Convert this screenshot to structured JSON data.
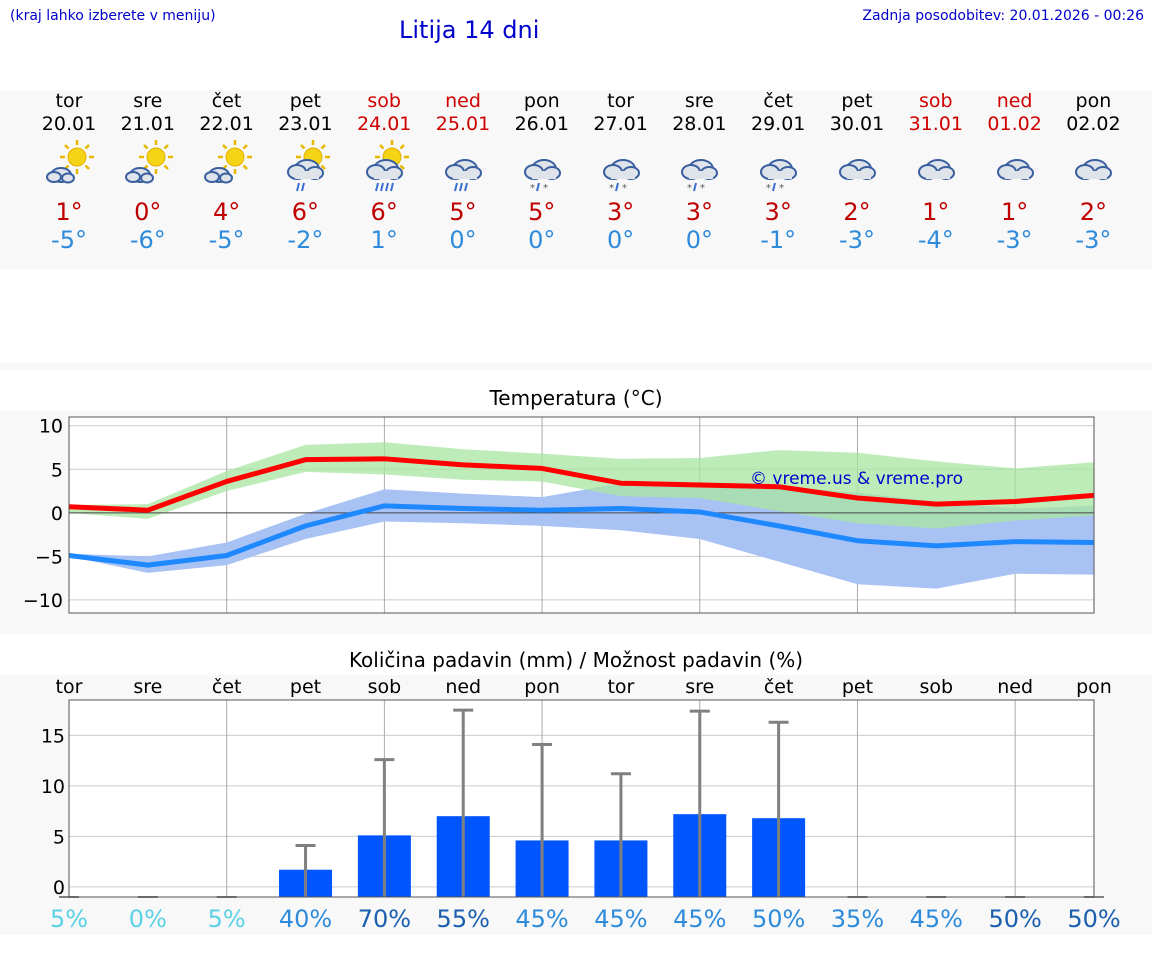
{
  "header": {
    "note": "(kraj lahko izberete v meniju)",
    "title": "Litija 14 dni",
    "updated": "Zadnja posodobitev: 20.01.2026 - 00:26"
  },
  "days": [
    {
      "name": "tor",
      "date": "20.01",
      "weekend": false,
      "icon": "sun-cloud-icon",
      "tmax": "1°",
      "tmin": "-5°"
    },
    {
      "name": "sre",
      "date": "21.01",
      "weekend": false,
      "icon": "sun-cloud-icon",
      "tmax": "0°",
      "tmin": "-6°"
    },
    {
      "name": "čet",
      "date": "22.01",
      "weekend": false,
      "icon": "sun-cloud-icon",
      "tmax": "4°",
      "tmin": "-5°"
    },
    {
      "name": "pet",
      "date": "23.01",
      "weekend": false,
      "icon": "sun-cloud-rain-icon",
      "tmax": "6°",
      "tmin": "-2°"
    },
    {
      "name": "sob",
      "date": "24.01",
      "weekend": true,
      "icon": "sun-cloud-heavy-rain-icon",
      "tmax": "6°",
      "tmin": "1°"
    },
    {
      "name": "ned",
      "date": "25.01",
      "weekend": true,
      "icon": "cloud-rain-icon",
      "tmax": "5°",
      "tmin": "0°"
    },
    {
      "name": "pon",
      "date": "26.01",
      "weekend": false,
      "icon": "cloud-sleet-icon",
      "tmax": "5°",
      "tmin": "0°"
    },
    {
      "name": "tor",
      "date": "27.01",
      "weekend": false,
      "icon": "cloud-sleet-icon",
      "tmax": "3°",
      "tmin": "0°"
    },
    {
      "name": "sre",
      "date": "28.01",
      "weekend": false,
      "icon": "cloud-sleet-icon",
      "tmax": "3°",
      "tmin": "0°"
    },
    {
      "name": "čet",
      "date": "29.01",
      "weekend": false,
      "icon": "cloud-sleet-icon",
      "tmax": "3°",
      "tmin": "-1°"
    },
    {
      "name": "pet",
      "date": "30.01",
      "weekend": false,
      "icon": "cloud-icon",
      "tmax": "2°",
      "tmin": "-3°"
    },
    {
      "name": "sob",
      "date": "31.01",
      "weekend": true,
      "icon": "cloud-icon",
      "tmax": "1°",
      "tmin": "-4°"
    },
    {
      "name": "ned",
      "date": "01.02",
      "weekend": true,
      "icon": "cloud-icon",
      "tmax": "1°",
      "tmin": "-3°"
    },
    {
      "name": "pon",
      "date": "02.02",
      "weekend": false,
      "icon": "cloud-icon",
      "tmax": "2°",
      "tmin": "-3°"
    }
  ],
  "colors": {
    "max_line": "#ff0000",
    "min_line": "#1e88ff",
    "max_band": "#a8e6a0",
    "min_band": "#a9c2f4",
    "overlap_band": "#7fbfa0",
    "bar": "#0055ff",
    "error": "#808080",
    "weekend": "#d00000",
    "tmin_text": "#2e8bdc"
  },
  "chart_data": [
    {
      "type": "line",
      "title": "Temperatura (°C)",
      "watermark": "© vreme.us & vreme.pro",
      "ylim": [
        -11.5,
        11
      ],
      "yticks": [
        10,
        5,
        0,
        -5,
        -10
      ],
      "ytick_labels": [
        "10",
        "5",
        "0",
        "−5",
        "−10"
      ],
      "x": [
        0,
        1,
        2,
        3,
        4,
        5,
        6,
        7,
        8,
        9,
        10,
        11,
        12,
        13
      ],
      "series": [
        {
          "name": "max",
          "values": [
            0.7,
            0.3,
            3.6,
            6.1,
            6.2,
            5.5,
            5.1,
            3.4,
            3.2,
            3.0,
            1.7,
            1.0,
            1.3,
            2.0
          ],
          "band_low": [
            0.0,
            -0.7,
            2.5,
            4.7,
            4.4,
            3.8,
            3.6,
            1.9,
            1.7,
            0.2,
            -1.2,
            -1.8,
            -0.9,
            -0.3
          ],
          "band_high": [
            0.9,
            1.0,
            4.8,
            7.8,
            8.1,
            7.3,
            6.8,
            6.2,
            6.3,
            7.2,
            6.9,
            5.9,
            5.1,
            5.8
          ]
        },
        {
          "name": "min",
          "values": [
            -4.9,
            -6.0,
            -4.9,
            -1.5,
            0.8,
            0.5,
            0.3,
            0.5,
            0.1,
            -1.5,
            -3.2,
            -3.8,
            -3.3,
            -3.4
          ],
          "band_low": [
            -5.0,
            -6.9,
            -6.0,
            -3.0,
            -1.0,
            -1.2,
            -1.5,
            -2.0,
            -3.0,
            -5.6,
            -8.2,
            -8.7,
            -7.0,
            -7.1
          ],
          "band_high": [
            -4.7,
            -5.0,
            -3.4,
            -0.1,
            2.7,
            2.2,
            1.8,
            3.4,
            3.4,
            3.0,
            2.3,
            1.3,
            0.5,
            0.8
          ]
        }
      ]
    },
    {
      "type": "bar",
      "title": "Količina padavin (mm) / Možnost padavin (%)",
      "categories": [
        "tor",
        "sre",
        "čet",
        "pet",
        "sob",
        "ned",
        "pon",
        "tor",
        "sre",
        "čet",
        "pet",
        "sob",
        "ned",
        "pon"
      ],
      "ylim": [
        -1,
        18.5
      ],
      "yticks": [
        15,
        10,
        5,
        0
      ],
      "ytick_labels": [
        "15",
        "10",
        "5",
        "0"
      ],
      "values": [
        0,
        0,
        0,
        1.7,
        5.1,
        7.0,
        4.6,
        4.6,
        7.2,
        6.8,
        0,
        0,
        0,
        0
      ],
      "error_high": [
        0,
        0,
        0,
        4.1,
        12.6,
        17.5,
        14.1,
        11.2,
        17.4,
        16.3,
        0,
        0,
        0,
        0
      ],
      "probability": [
        "5%",
        "0%",
        "5%",
        "40%",
        "70%",
        "55%",
        "45%",
        "45%",
        "45%",
        "50%",
        "35%",
        "45%",
        "50%",
        "50%"
      ],
      "probability_colors": [
        "#5bd1e6",
        "#5bd1e6",
        "#5bd1e6",
        "#2e8bdc",
        "#1a5fb0",
        "#1a5fb0",
        "#2e8bdc",
        "#2e8bdc",
        "#2e8bdc",
        "#2e8bdc",
        "#2e8bdc",
        "#2e8bdc",
        "#1a5fb0",
        "#1a5fb0"
      ]
    }
  ]
}
